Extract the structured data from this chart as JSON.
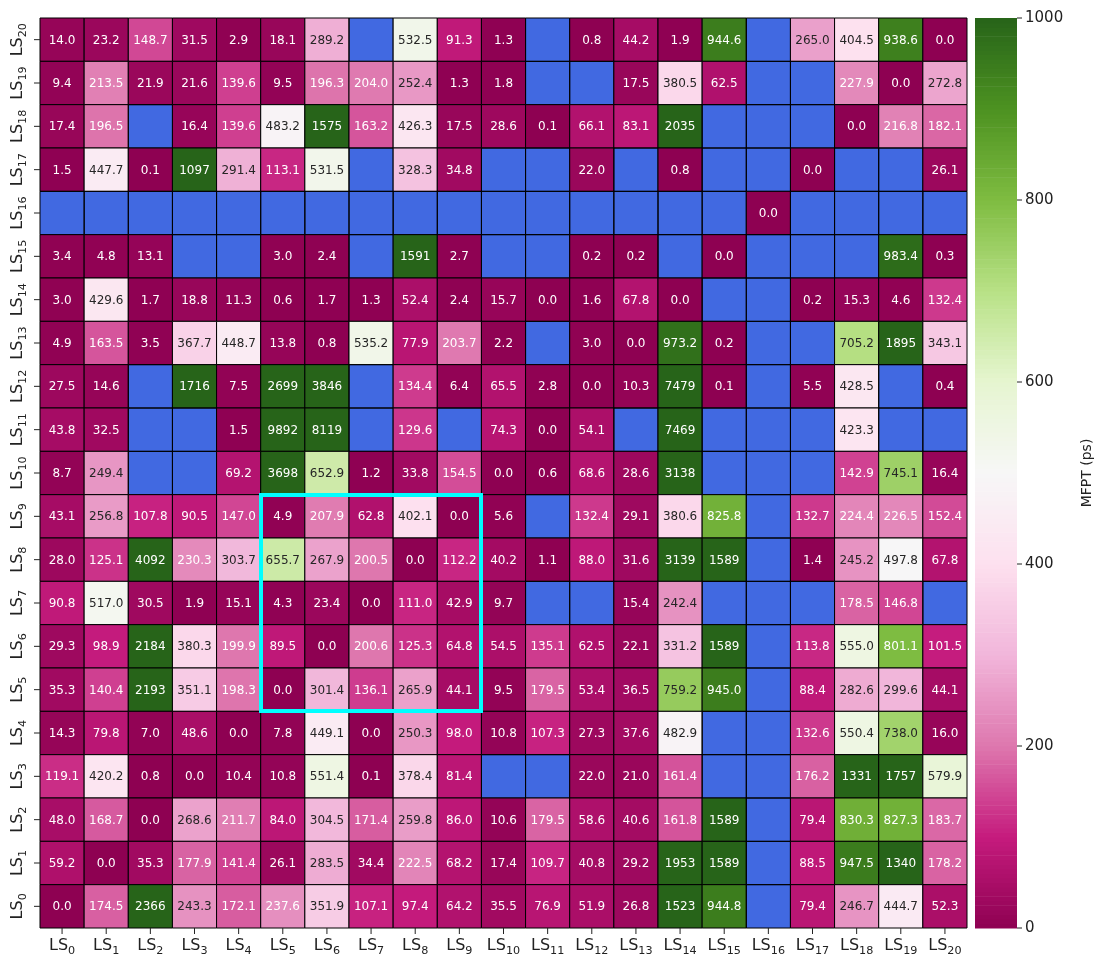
{
  "chart_data": {
    "type": "heatmap",
    "clabel": "MFPT (ps)",
    "clim": [
      0,
      1000
    ],
    "cticks": [
      0,
      200,
      400,
      600,
      800,
      1000
    ],
    "categories": [
      "LS$_{0}$",
      "LS$_{1}$",
      "LS$_{2}$",
      "LS$_{3}$",
      "LS$_{4}$",
      "LS$_{5}$",
      "LS$_{6}$",
      "LS$_{7}$",
      "LS$_{8}$",
      "LS$_{9}$",
      "LS$_{10}$",
      "LS$_{11}$",
      "LS$_{12}$",
      "LS$_{13}$",
      "LS$_{14}$",
      "LS$_{15}$",
      "LS$_{16}$",
      "LS$_{17}$",
      "LS$_{18}$",
      "LS$_{19}$",
      "LS$_{20}$"
    ],
    "y_categories": [
      "LS$_{20}$",
      "LS$_{19}$",
      "LS$_{18}$",
      "LS$_{17}$",
      "LS$_{16}$",
      "LS$_{15}$",
      "LS$_{14}$",
      "LS$_{13}$",
      "LS$_{12}$",
      "LS$_{11}$",
      "LS$_{10}$",
      "LS$_{9}$",
      "LS$_{8}$",
      "LS$_{7}$",
      "LS$_{6}$",
      "LS$_{5}$",
      "LS$_{4}$",
      "LS$_{3}$",
      "LS$_{2}$",
      "LS$_{1}$",
      "LS$_{0}$"
    ],
    "cells": [
      [
        14.0,
        23.2,
        148.7,
        31.5,
        2.9,
        18.1,
        289.2,
        null,
        532.5,
        91.3,
        1.3,
        null,
        0.8,
        44.2,
        1.9,
        944.6,
        null,
        265.0,
        404.5,
        938.6,
        0.0
      ],
      [
        9.4,
        213.5,
        21.9,
        21.6,
        139.6,
        9.5,
        196.3,
        204.0,
        252.4,
        1.3,
        1.8,
        null,
        null,
        17.5,
        380.5,
        62.5,
        null,
        null,
        227.9,
        0.0,
        272.8
      ],
      [
        17.4,
        196.5,
        null,
        16.4,
        139.6,
        483.2,
        1575,
        163.2,
        426.3,
        17.5,
        28.6,
        0.1,
        66.1,
        83.1,
        2035,
        null,
        null,
        null,
        0.0,
        216.8,
        182.1
      ],
      [
        1.5,
        447.7,
        0.1,
        1097,
        291.4,
        113.1,
        531.5,
        null,
        328.3,
        34.8,
        null,
        null,
        22.0,
        null,
        0.8,
        null,
        null,
        0.0,
        null,
        null,
        26.1
      ],
      [
        null,
        null,
        null,
        null,
        null,
        null,
        null,
        null,
        null,
        null,
        null,
        null,
        null,
        null,
        null,
        null,
        0.0,
        null,
        null,
        null,
        null
      ],
      [
        3.4,
        4.8,
        13.1,
        null,
        null,
        3.0,
        2.4,
        null,
        1591,
        2.7,
        null,
        null,
        0.2,
        0.2,
        null,
        0.0,
        null,
        null,
        null,
        983.4,
        0.3
      ],
      [
        3.0,
        429.6,
        1.7,
        18.8,
        11.3,
        0.6,
        1.7,
        1.3,
        52.4,
        2.4,
        15.7,
        0.0,
        1.6,
        67.8,
        0.0,
        null,
        null,
        0.2,
        15.3,
        4.6,
        132.4
      ],
      [
        4.9,
        163.5,
        3.5,
        367.7,
        448.7,
        13.8,
        0.8,
        535.2,
        77.9,
        203.7,
        2.2,
        null,
        3.0,
        0.0,
        973.2,
        0.2,
        null,
        null,
        705.2,
        1895,
        343.1
      ],
      [
        27.5,
        14.6,
        null,
        1716,
        7.5,
        2699,
        3846,
        null,
        134.4,
        6.4,
        65.5,
        2.8,
        0.0,
        10.3,
        7479,
        0.1,
        null,
        5.5,
        428.5,
        null,
        0.4
      ],
      [
        43.8,
        32.5,
        null,
        null,
        1.5,
        9892,
        8119,
        null,
        129.6,
        null,
        74.3,
        0.0,
        54.1,
        null,
        7469,
        null,
        null,
        null,
        423.3,
        null,
        null
      ],
      [
        8.7,
        249.4,
        null,
        null,
        69.2,
        3698,
        652.9,
        1.2,
        33.8,
        154.5,
        0.0,
        0.6,
        68.6,
        28.6,
        3138,
        null,
        null,
        null,
        142.9,
        745.1,
        16.4
      ],
      [
        43.1,
        256.8,
        107.8,
        90.5,
        147.0,
        4.9,
        207.9,
        62.8,
        402.1,
        0.0,
        5.6,
        null,
        132.4,
        29.1,
        380.6,
        825.8,
        null,
        132.7,
        224.4,
        226.5,
        152.4
      ],
      [
        28.0,
        125.1,
        4092,
        230.3,
        303.7,
        655.7,
        267.9,
        200.5,
        0.0,
        112.2,
        40.2,
        1.1,
        88.0,
        31.6,
        3139,
        1589,
        null,
        1.4,
        245.2,
        497.8,
        67.8
      ],
      [
        90.8,
        517.0,
        30.5,
        1.9,
        15.1,
        4.3,
        23.4,
        0.0,
        111.0,
        42.9,
        9.7,
        null,
        null,
        15.4,
        242.4,
        null,
        null,
        null,
        178.5,
        146.8,
        null
      ],
      [
        29.3,
        98.9,
        2184,
        380.3,
        199.9,
        89.5,
        0.0,
        200.6,
        125.3,
        64.8,
        54.5,
        135.1,
        62.5,
        22.1,
        331.2,
        1589,
        null,
        113.8,
        555.0,
        801.1,
        101.5
      ],
      [
        35.3,
        140.4,
        2193,
        351.1,
        198.3,
        0.0,
        301.4,
        136.1,
        265.9,
        44.1,
        9.5,
        179.5,
        53.4,
        36.5,
        759.2,
        945.0,
        null,
        88.4,
        282.6,
        299.6,
        44.1
      ],
      [
        14.3,
        79.8,
        7.0,
        48.6,
        0.0,
        7.8,
        449.1,
        0.0,
        250.3,
        98.0,
        10.8,
        107.3,
        27.3,
        37.6,
        482.9,
        null,
        null,
        132.6,
        550.4,
        738.0,
        16.0
      ],
      [
        119.1,
        420.2,
        0.8,
        0.0,
        10.4,
        10.8,
        551.4,
        0.1,
        378.4,
        81.4,
        null,
        null,
        22.0,
        21.0,
        161.4,
        null,
        null,
        176.2,
        1331,
        1757,
        579.9
      ],
      [
        48.0,
        168.7,
        0.0,
        268.6,
        211.7,
        84.0,
        304.5,
        171.4,
        259.8,
        86.0,
        10.6,
        179.5,
        58.6,
        40.6,
        161.8,
        1589,
        null,
        79.4,
        830.3,
        827.3,
        183.7
      ],
      [
        59.2,
        0.0,
        35.3,
        177.9,
        141.4,
        26.1,
        283.5,
        34.4,
        222.5,
        68.2,
        17.4,
        109.7,
        40.8,
        29.2,
        1953,
        1589,
        null,
        88.5,
        947.5,
        1340,
        178.2
      ],
      [
        0.0,
        174.5,
        2366,
        243.3,
        172.1,
        237.6,
        351.9,
        107.1,
        97.4,
        64.2,
        35.5,
        76.9,
        51.9,
        26.8,
        1523,
        944.8,
        null,
        79.4,
        246.7,
        444.7,
        52.3
      ]
    ],
    "cell_labels": [
      [
        "14.0",
        "23.2",
        "148.7",
        "31.5",
        "2.9",
        "18.1",
        "289.2",
        null,
        "532.5",
        "91.3",
        "1.3",
        null,
        "0.8",
        "44.2",
        "1.9",
        "944.6",
        null,
        "265.0",
        "404.5",
        "938.6",
        "0.0"
      ],
      [
        "9.4",
        "213.5",
        "21.9",
        "21.6",
        "139.6",
        "9.5",
        "196.3",
        "204.0",
        "252.4",
        "1.3",
        "1.8",
        null,
        null,
        "17.5",
        "380.5",
        "62.5",
        null,
        null,
        "227.9",
        "0.0",
        "272.8"
      ],
      [
        "17.4",
        "196.5",
        null,
        "16.4",
        "139.6",
        "483.2",
        "1575",
        "163.2",
        "426.3",
        "17.5",
        "28.6",
        "0.1",
        "66.1",
        "83.1",
        "2035",
        null,
        null,
        null,
        "0.0",
        "216.8",
        "182.1"
      ],
      [
        "1.5",
        "447.7",
        "0.1",
        "1097",
        "291.4",
        "113.1",
        "531.5",
        null,
        "328.3",
        "34.8",
        null,
        null,
        "22.0",
        null,
        "0.8",
        null,
        null,
        "0.0",
        null,
        null,
        "26.1"
      ],
      [
        null,
        null,
        null,
        null,
        null,
        null,
        null,
        null,
        null,
        null,
        null,
        null,
        null,
        null,
        null,
        null,
        "0.0",
        null,
        null,
        null,
        null
      ],
      [
        "3.4",
        "4.8",
        "13.1",
        null,
        null,
        "3.0",
        "2.4",
        null,
        "1591",
        "2.7",
        null,
        null,
        "0.2",
        "0.2",
        null,
        "0.0",
        null,
        null,
        null,
        "983.4",
        "0.3"
      ],
      [
        "3.0",
        "429.6",
        "1.7",
        "18.8",
        "11.3",
        "0.6",
        "1.7",
        "1.3",
        "52.4",
        "2.4",
        "15.7",
        "0.0",
        "1.6",
        "67.8",
        "0.0",
        null,
        null,
        "0.2",
        "15.3",
        "4.6",
        "132.4"
      ],
      [
        "4.9",
        "163.5",
        "3.5",
        "367.7",
        "448.7",
        "13.8",
        "0.8",
        "535.2",
        "77.9",
        "203.7",
        "2.2",
        null,
        "3.0",
        "0.0",
        "973.2",
        "0.2",
        null,
        null,
        "705.2",
        "1895",
        "343.1"
      ],
      [
        "27.5",
        "14.6",
        null,
        "1716",
        "7.5",
        "2699",
        "3846",
        null,
        "134.4",
        "6.4",
        "65.5",
        "2.8",
        "0.0",
        "10.3",
        "7479",
        "0.1",
        null,
        "5.5",
        "428.5",
        null,
        "0.4"
      ],
      [
        "43.8",
        "32.5",
        null,
        null,
        "1.5",
        "9892",
        "8119",
        null,
        "129.6",
        null,
        "74.3",
        "0.0",
        "54.1",
        null,
        "7469",
        null,
        null,
        null,
        "423.3",
        null,
        null
      ],
      [
        "8.7",
        "249.4",
        null,
        null,
        "69.2",
        "3698",
        "652.9",
        "1.2",
        "33.8",
        "154.5",
        "0.0",
        "0.6",
        "68.6",
        "28.6",
        "3138",
        null,
        null,
        null,
        "142.9",
        "745.1",
        "16.4"
      ],
      [
        "43.1",
        "256.8",
        "107.8",
        "90.5",
        "147.0",
        "4.9",
        "207.9",
        "62.8",
        "402.1",
        "0.0",
        "5.6",
        null,
        "132.4",
        "29.1",
        "380.6",
        "825.8",
        null,
        "132.7",
        "224.4",
        "226.5",
        "152.4"
      ],
      [
        "28.0",
        "125.1",
        "4092",
        "230.3",
        "303.7",
        "655.7",
        "267.9",
        "200.5",
        "0.0",
        "112.2",
        "40.2",
        "1.1",
        "88.0",
        "31.6",
        "3139",
        "1589",
        null,
        "1.4",
        "245.2",
        "497.8",
        "67.8"
      ],
      [
        "90.8",
        "517.0",
        "30.5",
        "1.9",
        "15.1",
        "4.3",
        "23.4",
        "0.0",
        "111.0",
        "42.9",
        "9.7",
        null,
        null,
        "15.4",
        "242.4",
        null,
        null,
        null,
        "178.5",
        "146.8",
        null
      ],
      [
        "29.3",
        "98.9",
        "2184",
        "380.3",
        "199.9",
        "89.5",
        "0.0",
        "200.6",
        "125.3",
        "64.8",
        "54.5",
        "135.1",
        "62.5",
        "22.1",
        "331.2",
        "1589",
        null,
        "113.8",
        "555.0",
        "801.1",
        "101.5"
      ],
      [
        "35.3",
        "140.4",
        "2193",
        "351.1",
        "198.3",
        "0.0",
        "301.4",
        "136.1",
        "265.9",
        "44.1",
        "9.5",
        "179.5",
        "53.4",
        "36.5",
        "759.2",
        "945.0",
        null,
        "88.4",
        "282.6",
        "299.6",
        "44.1"
      ],
      [
        "14.3",
        "79.8",
        "7.0",
        "48.6",
        "0.0",
        "7.8",
        "449.1",
        "0.0",
        "250.3",
        "98.0",
        "10.8",
        "107.3",
        "27.3",
        "37.6",
        "482.9",
        null,
        null,
        "132.6",
        "550.4",
        "738.0",
        "16.0"
      ],
      [
        "119.1",
        "420.2",
        "0.8",
        "0.0",
        "10.4",
        "10.8",
        "551.4",
        "0.1",
        "378.4",
        "81.4",
        null,
        null,
        "22.0",
        "21.0",
        "161.4",
        null,
        null,
        "176.2",
        "1331",
        "1757",
        "579.9"
      ],
      [
        "48.0",
        "168.7",
        "0.0",
        "268.6",
        "211.7",
        "84.0",
        "304.5",
        "171.4",
        "259.8",
        "86.0",
        "10.6",
        "179.5",
        "58.6",
        "40.6",
        "161.8",
        "1589",
        null,
        "79.4",
        "830.3",
        "827.3",
        "183.7"
      ],
      [
        "59.2",
        "0.0",
        "35.3",
        "177.9",
        "141.4",
        "26.1",
        "283.5",
        "34.4",
        "222.5",
        "68.2",
        "17.4",
        "109.7",
        "40.8",
        "29.2",
        "1953",
        "1589",
        null,
        "88.5",
        "947.5",
        "1340",
        "178.2"
      ],
      [
        "0.0",
        "174.5",
        "2366",
        "243.3",
        "172.1",
        "237.6",
        "351.9",
        "107.1",
        "97.4",
        "64.2",
        "35.5",
        "76.9",
        "51.9",
        "26.8",
        "1523",
        "944.8",
        null,
        "79.4",
        "246.7",
        "444.7",
        "52.3"
      ]
    ]
  }
}
